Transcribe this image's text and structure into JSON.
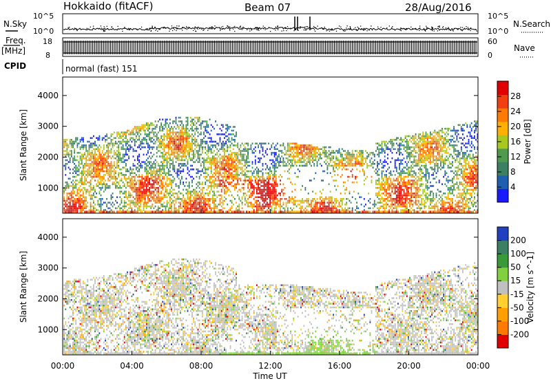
{
  "header": {
    "station": "Hokkaido (fitACF)",
    "beam": "Beam 07",
    "date": "28/Aug/2016"
  },
  "top_panels": {
    "nsky": {
      "label": "N.Sky",
      "tick_top": "10^5",
      "tick_bottom": "10^0"
    },
    "nsearch": {
      "label": "N.Search",
      "tick_top": "10^5",
      "tick_bottom": "10^0"
    },
    "freq": {
      "label": "Freq.",
      "unit": "[MHz]",
      "tick_top": "18",
      "tick_bottom": "8"
    },
    "nave": {
      "label": "Nave",
      "tick_top": "60",
      "tick_bottom": "0"
    },
    "cpid": {
      "label": "CPID",
      "text": "normal (fast) 151"
    }
  },
  "colors": {
    "power_scale": [
      "#1a1aff",
      "#1f5fb0",
      "#3c7f62",
      "#4f9a4f",
      "#a8c81e",
      "#ffb000",
      "#ff7a00",
      "#f04010",
      "#e00000"
    ],
    "velocity_scale": [
      "#e00000",
      "#ff7a00",
      "#ffa000",
      "#ffd030",
      "#c0c0c0",
      "#80d040",
      "#3a9a3a",
      "#3c7f62",
      "#2040c0"
    ]
  },
  "chart_data": [
    {
      "type": "heatmap",
      "title": "Power",
      "xlabel": "Time UT",
      "ylabel": "Slant Range [km]",
      "x_ticks": [
        "00:00",
        "04:00",
        "08:00",
        "12:00",
        "16:00",
        "20:00",
        "00:00"
      ],
      "y_ticks": [
        "1000",
        "2000",
        "3000",
        "4000"
      ],
      "xlim": [
        0,
        24
      ],
      "ylim": [
        180,
        4600
      ],
      "colorbar": {
        "label": "Power [dB]",
        "ticks": [
          "4",
          "8",
          "12",
          "16",
          "20",
          "24",
          "28"
        ],
        "range": [
          0,
          30
        ]
      }
    },
    {
      "type": "heatmap",
      "title": "Velocity",
      "xlabel": "Time UT",
      "ylabel": "Slant Range [km]",
      "x_ticks": [
        "00:00",
        "04:00",
        "08:00",
        "12:00",
        "16:00",
        "20:00",
        "00:00"
      ],
      "y_ticks": [
        "1000",
        "2000",
        "3000",
        "4000"
      ],
      "xlim": [
        0,
        24
      ],
      "ylim": [
        180,
        4600
      ],
      "colorbar": {
        "label": "Velocity [m s^-1]",
        "ticks": [
          "-200",
          "-100",
          "-50",
          "-15",
          "15",
          "50",
          "100",
          "200"
        ],
        "range": [
          -250,
          250
        ]
      }
    }
  ]
}
